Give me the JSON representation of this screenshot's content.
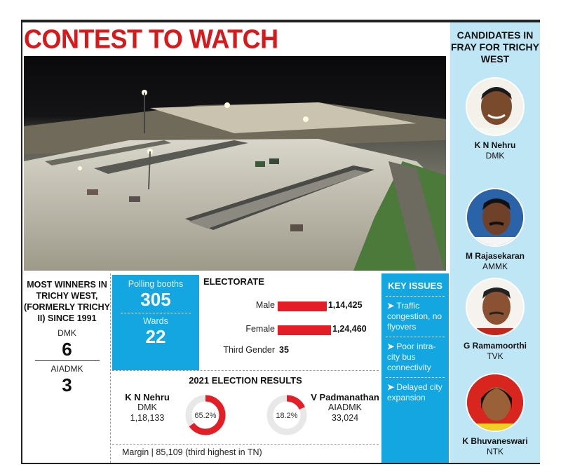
{
  "title": "CONTEST TO WATCH",
  "candidates": {
    "heading": "CANDIDATES IN FRAY FOR TRICHY WEST",
    "list": [
      {
        "name": "K N Nehru",
        "party": "DMK"
      },
      {
        "name": "M Rajasekaran",
        "party": "AMMK"
      },
      {
        "name": "G Ramamoorthi",
        "party": "TVK"
      },
      {
        "name": "K Bhuvaneswari",
        "party": "NTK"
      }
    ]
  },
  "winners": {
    "heading": "MOST WINNERS IN TRICHY WEST, (FORMERLY TRICHY II) SINCE 1991",
    "items": [
      {
        "party": "DMK",
        "count": "6"
      },
      {
        "party": "AIADMK",
        "count": "3"
      }
    ]
  },
  "booths": {
    "polling_label": "Polling booths",
    "polling_value": "305",
    "wards_label": "Wards",
    "wards_value": "22"
  },
  "electorate": {
    "heading": "ELECTORATE",
    "rows": [
      {
        "label": "Male",
        "value": "1,14,425",
        "number": 114425
      },
      {
        "label": "Female",
        "value": "1,24,460",
        "number": 124460
      },
      {
        "label": "Third Gender",
        "value": "35",
        "number": 35
      }
    ]
  },
  "results": {
    "heading": "2021 ELECTION RESULTS",
    "winner": {
      "name": "K N Nehru",
      "party": "DMK",
      "votes": "1,18,133",
      "share_label": "65.2%",
      "share": 65.2
    },
    "runner": {
      "name": "V Padmanathan",
      "party": "AIADMK",
      "votes": "33,024",
      "share_label": "18.2%",
      "share": 18.2
    },
    "margin": "Margin | 85,109 (third highest in TN)"
  },
  "issues": {
    "heading": "KEY ISSUES",
    "items": [
      "Traffic congestion, no flyovers",
      "Poor intra-city bus connectivity",
      "Delayed city expansion"
    ]
  },
  "colors": {
    "accent_red": "#d7191b",
    "bar_red": "#e41e26",
    "blue": "#13a6e0",
    "light_blue": "#bfe6f5"
  }
}
